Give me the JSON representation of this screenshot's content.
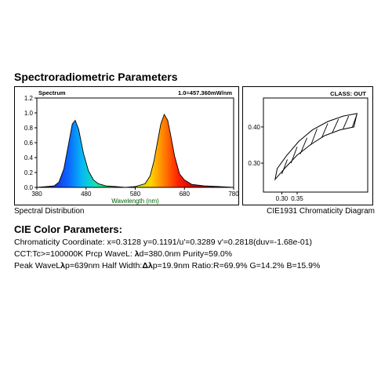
{
  "title": "Spectroradiometric Parameters",
  "spectrum": {
    "label_tl": "Spectrum",
    "label_tr": "1.0=457.360mW/nm",
    "xaxis": {
      "label": "Wavelength (nm)",
      "min": 380,
      "max": 780,
      "ticks": [
        380,
        480,
        580,
        680,
        780
      ]
    },
    "yaxis": {
      "min": 0,
      "max": 1.2,
      "ticks": [
        0,
        0.2,
        0.4,
        0.6,
        0.8,
        1.0,
        1.2
      ]
    },
    "curve": [
      [
        380,
        0.0
      ],
      [
        400,
        0.01
      ],
      [
        415,
        0.02
      ],
      [
        425,
        0.07
      ],
      [
        435,
        0.25
      ],
      [
        445,
        0.6
      ],
      [
        452,
        0.85
      ],
      [
        458,
        0.9
      ],
      [
        465,
        0.78
      ],
      [
        475,
        0.45
      ],
      [
        485,
        0.22
      ],
      [
        495,
        0.1
      ],
      [
        505,
        0.05
      ],
      [
        520,
        0.02
      ],
      [
        540,
        0.01
      ],
      [
        560,
        0.0
      ],
      [
        580,
        0.01
      ],
      [
        600,
        0.05
      ],
      [
        610,
        0.15
      ],
      [
        618,
        0.35
      ],
      [
        625,
        0.6
      ],
      [
        632,
        0.85
      ],
      [
        639,
        0.98
      ],
      [
        646,
        0.9
      ],
      [
        652,
        0.7
      ],
      [
        660,
        0.42
      ],
      [
        670,
        0.18
      ],
      [
        680,
        0.1
      ],
      [
        695,
        0.04
      ],
      [
        720,
        0.02
      ],
      [
        750,
        0.01
      ],
      [
        780,
        0.0
      ]
    ],
    "gradient_stops": [
      {
        "t": 0.0,
        "c": "#1b0a4a"
      },
      {
        "t": 0.08,
        "c": "#1a2fd6"
      },
      {
        "t": 0.16,
        "c": "#0b66ff"
      },
      {
        "t": 0.23,
        "c": "#07b8f5"
      },
      {
        "t": 0.3,
        "c": "#14e3b2"
      },
      {
        "t": 0.4,
        "c": "#28d31f"
      },
      {
        "t": 0.5,
        "c": "#c5e80a"
      },
      {
        "t": 0.58,
        "c": "#ffd200"
      },
      {
        "t": 0.65,
        "c": "#ff7a00"
      },
      {
        "t": 0.72,
        "c": "#ff1e00"
      },
      {
        "t": 0.82,
        "c": "#b50000"
      },
      {
        "t": 1.0,
        "c": "#3a0000"
      }
    ],
    "border_color": "#000",
    "axis_font": 8
  },
  "cie": {
    "label_tr": "CLASS: OUT",
    "xticks": [
      0.3,
      0.35
    ],
    "yticks": [
      0.3,
      0.4
    ],
    "outer": [
      [
        0.285,
        0.285
      ],
      [
        0.315,
        0.32
      ],
      [
        0.355,
        0.36
      ],
      [
        0.4,
        0.392
      ],
      [
        0.45,
        0.415
      ],
      [
        0.5,
        0.43
      ],
      [
        0.545,
        0.437
      ],
      [
        0.535,
        0.4
      ],
      [
        0.49,
        0.392
      ],
      [
        0.44,
        0.376
      ],
      [
        0.395,
        0.352
      ],
      [
        0.35,
        0.322
      ],
      [
        0.312,
        0.288
      ],
      [
        0.278,
        0.255
      ]
    ],
    "hatch": [
      [
        [
          0.3,
          0.27
        ],
        [
          0.318,
          0.31
        ]
      ],
      [
        [
          0.33,
          0.3
        ],
        [
          0.35,
          0.345
        ]
      ],
      [
        [
          0.36,
          0.325
        ],
        [
          0.382,
          0.37
        ]
      ],
      [
        [
          0.395,
          0.35
        ],
        [
          0.415,
          0.395
        ]
      ],
      [
        [
          0.43,
          0.37
        ],
        [
          0.45,
          0.41
        ]
      ],
      [
        [
          0.465,
          0.385
        ],
        [
          0.485,
          0.422
        ]
      ],
      [
        [
          0.5,
          0.395
        ],
        [
          0.518,
          0.43
        ]
      ],
      [
        [
          0.53,
          0.4
        ],
        [
          0.545,
          0.435
        ]
      ]
    ],
    "xrange": [
      0.24,
      0.58
    ],
    "yrange": [
      0.22,
      0.48
    ]
  },
  "captions": {
    "left": "Spectral Distribution",
    "right": "CIE1931 Chromaticity Diagram"
  },
  "cie_params": {
    "title": "CIE Color Parameters:",
    "line1": "Chromaticity Coordinate: x=0.3128 y=0.1191/u'=0.3289 v'=0.2818(duv=-1.68e-01)",
    "line2_a": "CCT:Tc>=100000K Prcp WaveL: ",
    "line2_b": "d=380.0nm Purity=59.0%",
    "line3_a": "Peak WaveL",
    "line3_b": "p=639nm   Half Width:",
    "line3_c": "p=19.9nm Ratio:R=69.9% G=14.2% B=15.9%"
  }
}
